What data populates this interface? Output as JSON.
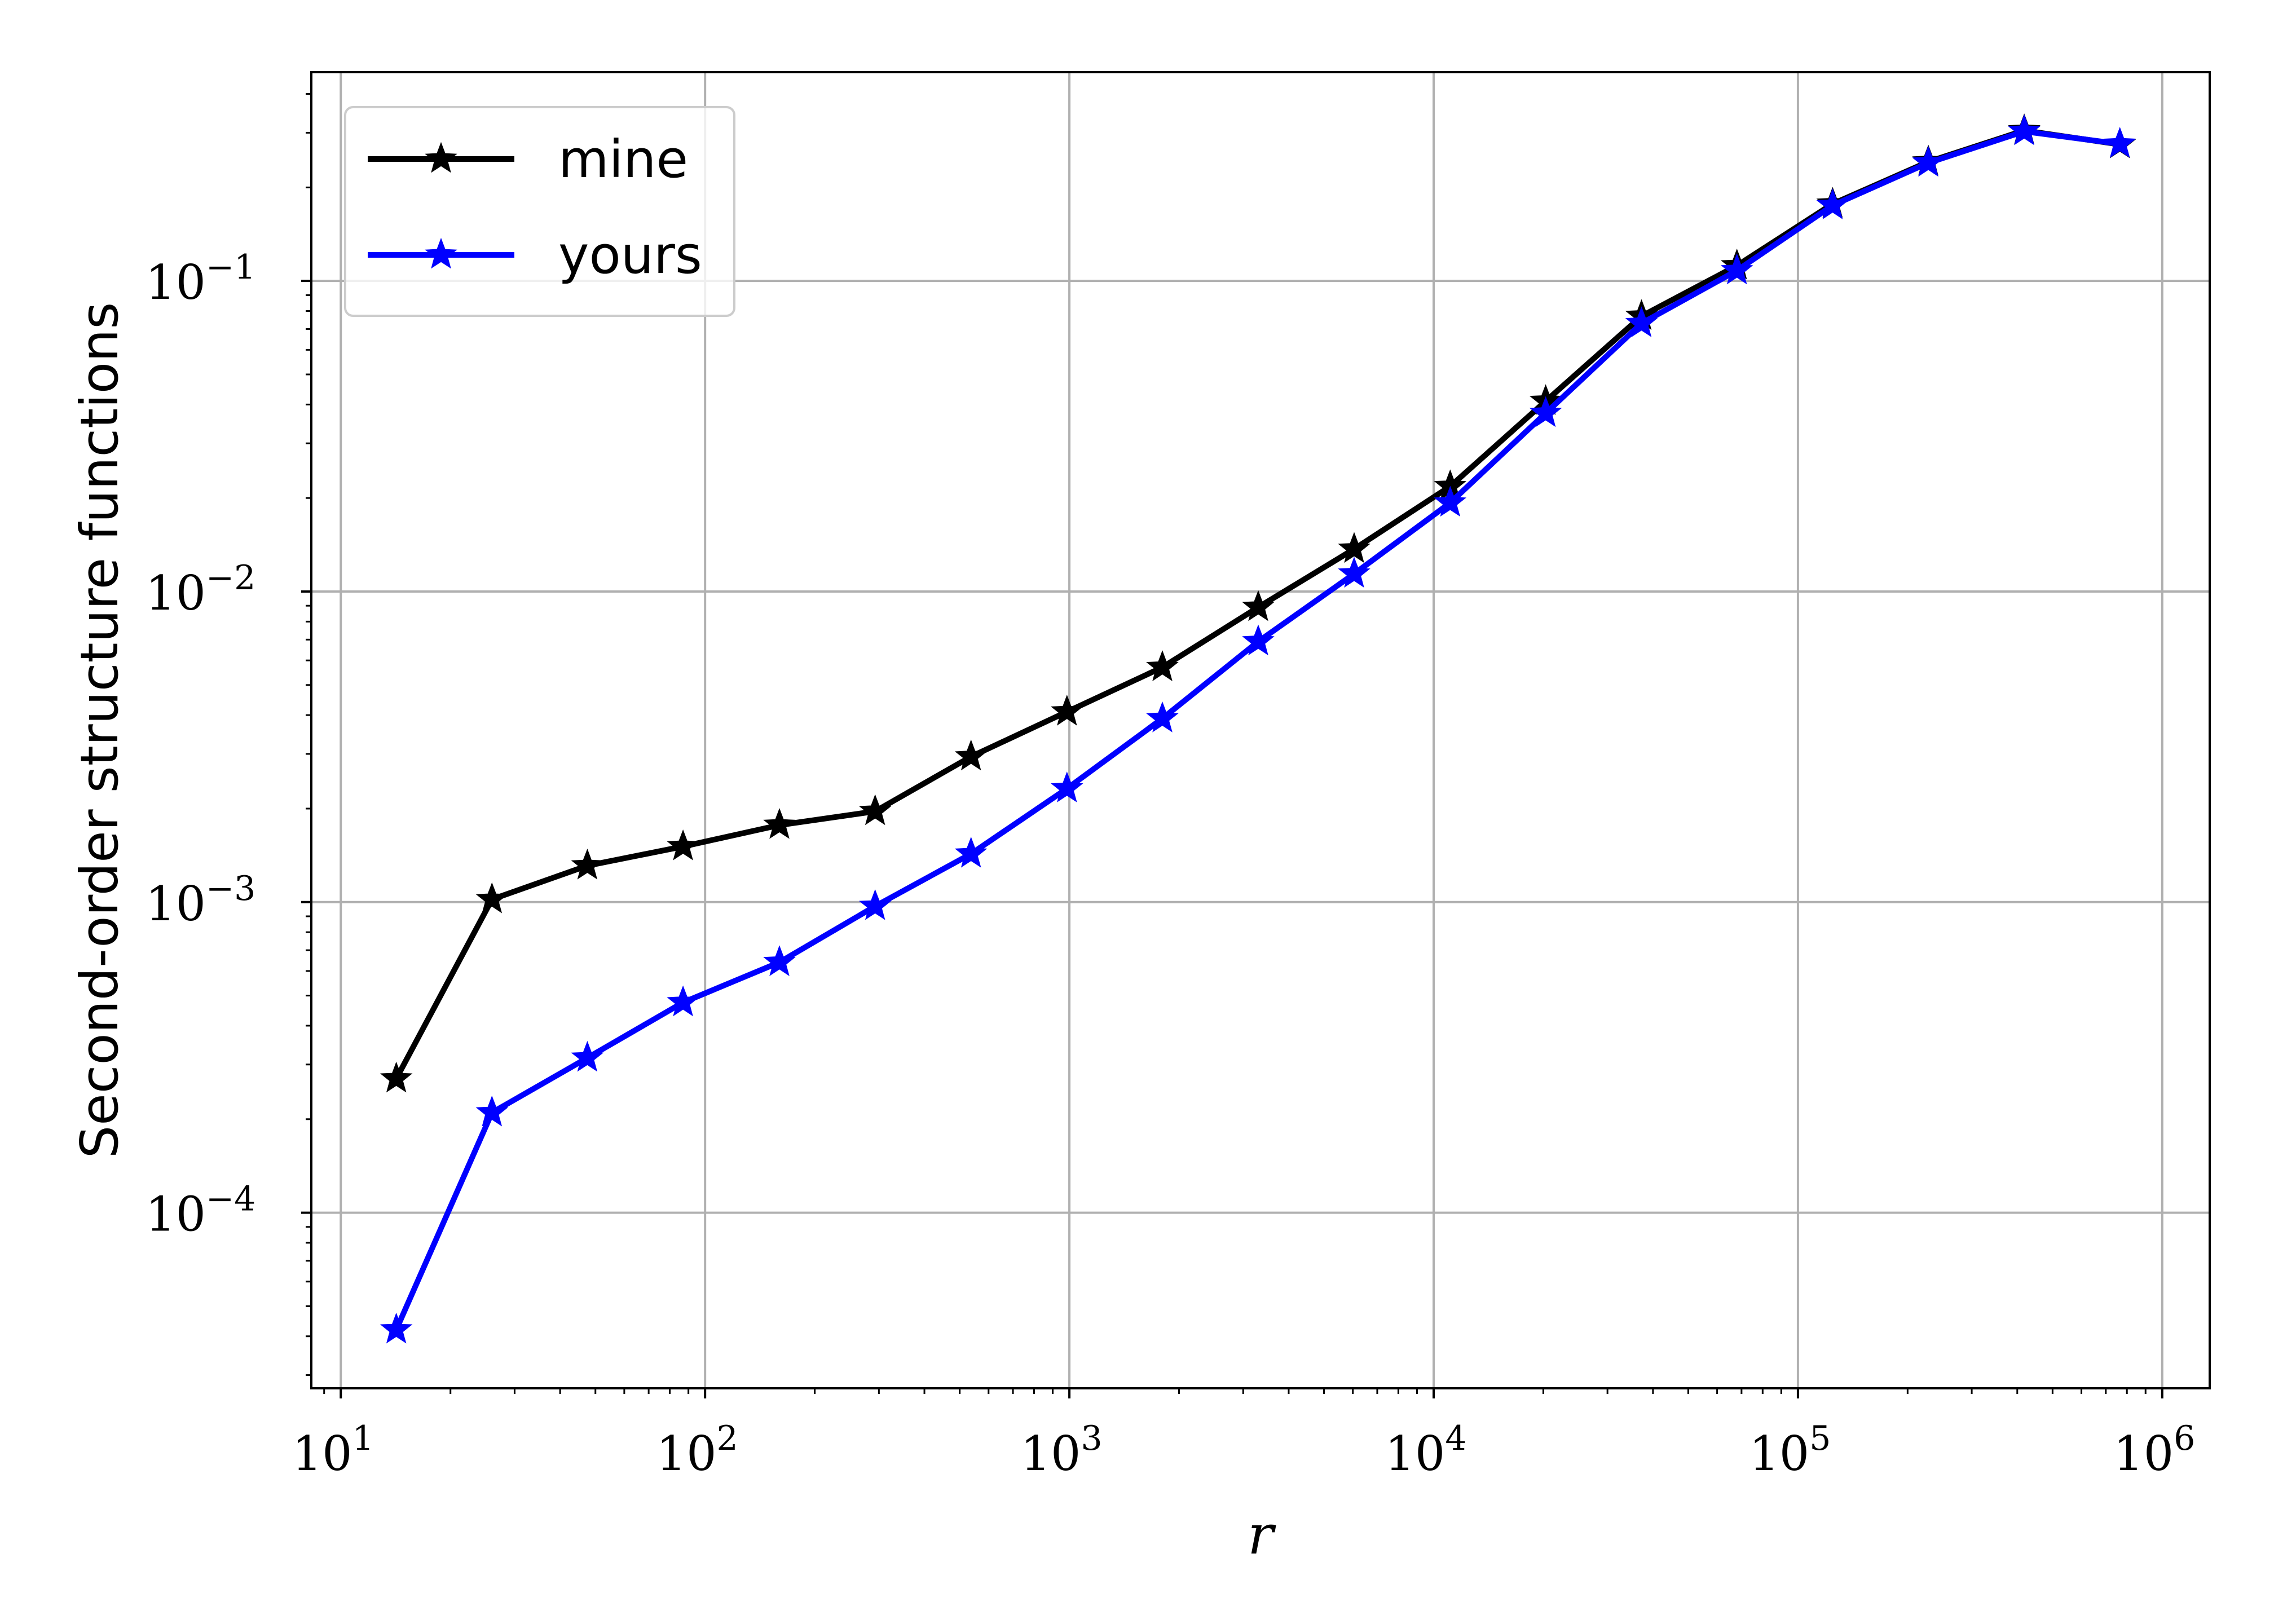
{
  "chart_data": {
    "type": "line",
    "title": "",
    "xlabel": "r",
    "ylabel": "Second-order structure functions",
    "xscale": "log",
    "yscale": "log",
    "xlim": [
      8.3,
      1350000
    ],
    "ylim": [
      2.72e-05,
      0.47
    ],
    "grid": true,
    "legend_position": "top-left",
    "x_ticks": [
      {
        "value": 10,
        "base": "10",
        "exp": "1"
      },
      {
        "value": 100,
        "base": "10",
        "exp": "2"
      },
      {
        "value": 1000,
        "base": "10",
        "exp": "3"
      },
      {
        "value": 10000,
        "base": "10",
        "exp": "4"
      },
      {
        "value": 100000,
        "base": "10",
        "exp": "5"
      },
      {
        "value": 1000000,
        "base": "10",
        "exp": "6"
      }
    ],
    "y_ticks": [
      {
        "value": 0.0001,
        "base": "10",
        "exp": "−4"
      },
      {
        "value": 0.001,
        "base": "10",
        "exp": "−3"
      },
      {
        "value": 0.01,
        "base": "10",
        "exp": "−2"
      },
      {
        "value": 0.1,
        "base": "10",
        "exp": "−1"
      }
    ],
    "series": [
      {
        "name": "mine",
        "color": "#000000",
        "x": [
          14.2,
          26,
          47.5,
          87,
          160,
          293,
          537,
          985,
          1800,
          3300,
          6050,
          11100,
          20300,
          37200,
          68000,
          124500,
          228000,
          418000,
          765000
        ],
        "y": [
          0.00027,
          0.00102,
          0.00131,
          0.00151,
          0.00177,
          0.00196,
          0.00294,
          0.0041,
          0.0057,
          0.0089,
          0.0137,
          0.0218,
          0.041,
          0.077,
          0.112,
          0.177,
          0.242,
          0.305,
          0.275
        ]
      },
      {
        "name": "yours",
        "color": "#0000ff",
        "x": [
          14.2,
          26,
          47.5,
          87,
          160,
          293,
          537,
          985,
          1800,
          3300,
          6050,
          11100,
          20300,
          37200,
          68000,
          124500,
          228000,
          418000,
          765000
        ],
        "y": [
          4.2e-05,
          0.00021,
          0.000315,
          0.000475,
          0.00064,
          0.00097,
          0.00143,
          0.00232,
          0.0039,
          0.0069,
          0.0114,
          0.0193,
          0.0375,
          0.073,
          0.108,
          0.175,
          0.24,
          0.303,
          0.276
        ]
      }
    ]
  }
}
